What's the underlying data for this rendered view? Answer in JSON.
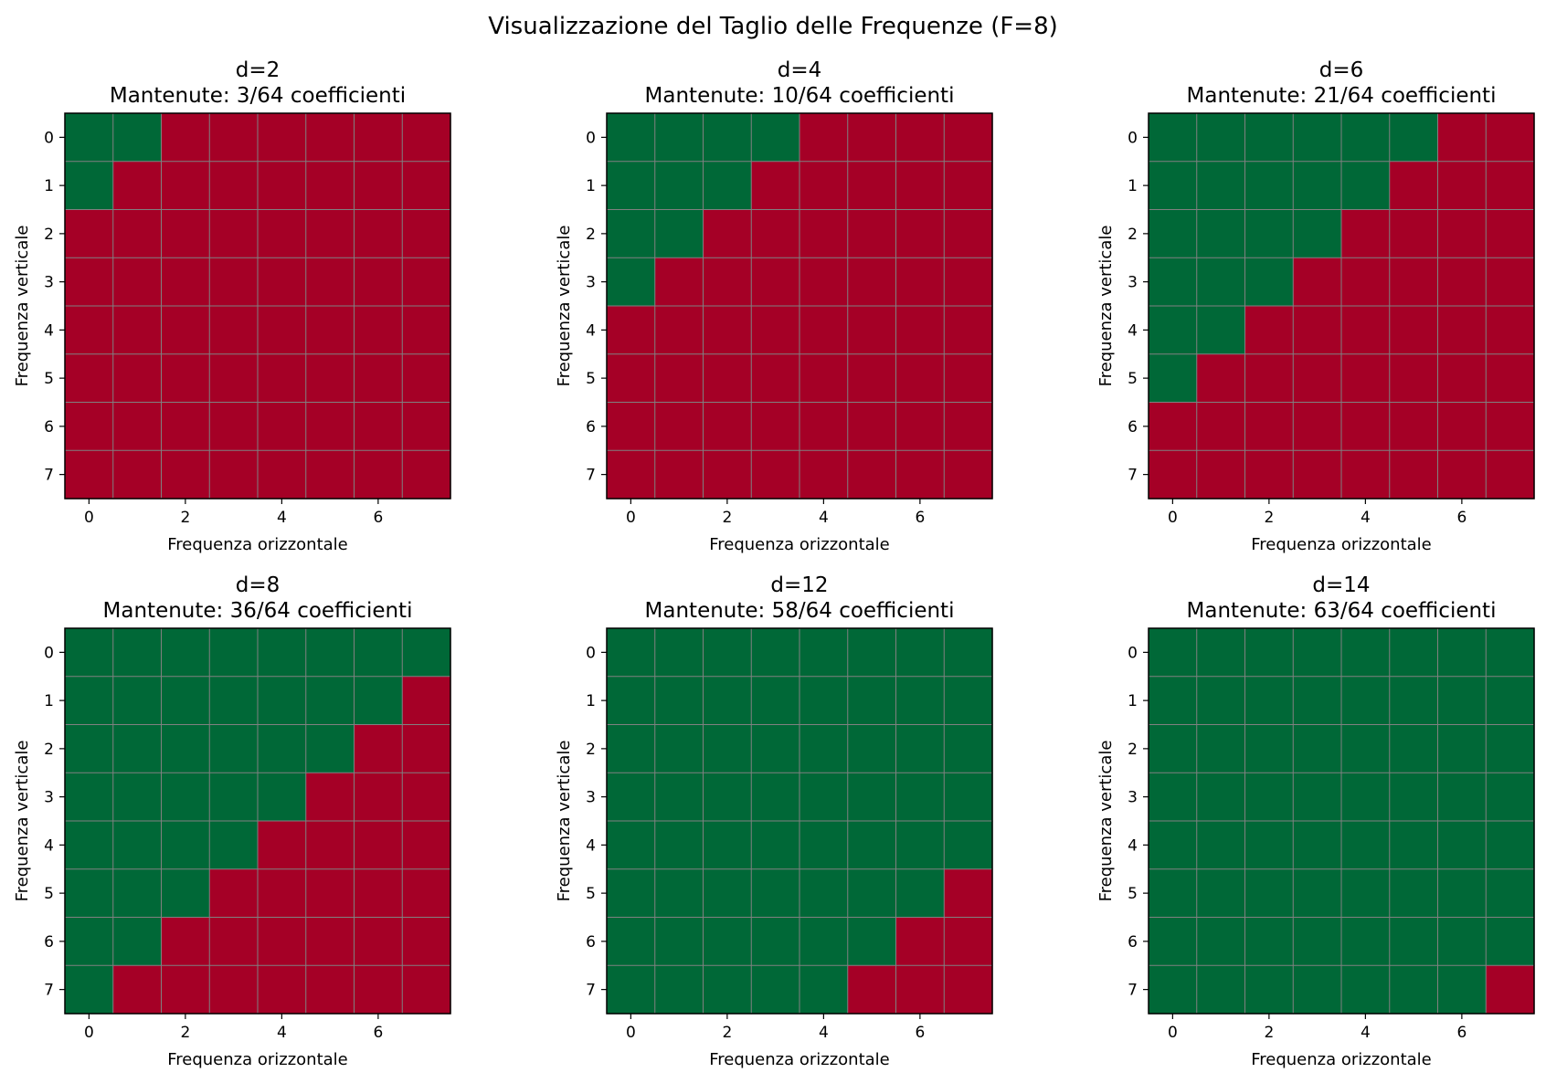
{
  "figure": {
    "suptitle": "Visualizzazione del Taglio delle Frequenze (F=8)"
  },
  "colors": {
    "kept": "#006837",
    "cut": "#a50026",
    "grid": "#808080",
    "frame": "#000000"
  },
  "chart_data": [
    {
      "type": "heatmap",
      "title": "d=2",
      "subtitle": "Mantenute: 3/64 coefficienti",
      "xlabel": "Frequenza orizzontale",
      "ylabel": "Frequenza verticale",
      "xticks": [
        "0",
        "2",
        "4",
        "6"
      ],
      "yticks": [
        "0",
        "1",
        "2",
        "3",
        "4",
        "5",
        "6",
        "7"
      ],
      "grid": true,
      "matrix": [
        [
          1,
          1,
          0,
          0,
          0,
          0,
          0,
          0
        ],
        [
          1,
          0,
          0,
          0,
          0,
          0,
          0,
          0
        ],
        [
          0,
          0,
          0,
          0,
          0,
          0,
          0,
          0
        ],
        [
          0,
          0,
          0,
          0,
          0,
          0,
          0,
          0
        ],
        [
          0,
          0,
          0,
          0,
          0,
          0,
          0,
          0
        ],
        [
          0,
          0,
          0,
          0,
          0,
          0,
          0,
          0
        ],
        [
          0,
          0,
          0,
          0,
          0,
          0,
          0,
          0
        ],
        [
          0,
          0,
          0,
          0,
          0,
          0,
          0,
          0
        ]
      ]
    },
    {
      "type": "heatmap",
      "title": "d=4",
      "subtitle": "Mantenute: 10/64 coefficienti",
      "xlabel": "Frequenza orizzontale",
      "ylabel": "Frequenza verticale",
      "xticks": [
        "0",
        "2",
        "4",
        "6"
      ],
      "yticks": [
        "0",
        "1",
        "2",
        "3",
        "4",
        "5",
        "6",
        "7"
      ],
      "grid": true,
      "matrix": [
        [
          1,
          1,
          1,
          1,
          0,
          0,
          0,
          0
        ],
        [
          1,
          1,
          1,
          0,
          0,
          0,
          0,
          0
        ],
        [
          1,
          1,
          0,
          0,
          0,
          0,
          0,
          0
        ],
        [
          1,
          0,
          0,
          0,
          0,
          0,
          0,
          0
        ],
        [
          0,
          0,
          0,
          0,
          0,
          0,
          0,
          0
        ],
        [
          0,
          0,
          0,
          0,
          0,
          0,
          0,
          0
        ],
        [
          0,
          0,
          0,
          0,
          0,
          0,
          0,
          0
        ],
        [
          0,
          0,
          0,
          0,
          0,
          0,
          0,
          0
        ]
      ]
    },
    {
      "type": "heatmap",
      "title": "d=6",
      "subtitle": "Mantenute: 21/64 coefficienti",
      "xlabel": "Frequenza orizzontale",
      "ylabel": "Frequenza verticale",
      "xticks": [
        "0",
        "2",
        "4",
        "6"
      ],
      "yticks": [
        "0",
        "1",
        "2",
        "3",
        "4",
        "5",
        "6",
        "7"
      ],
      "grid": true,
      "matrix": [
        [
          1,
          1,
          1,
          1,
          1,
          1,
          0,
          0
        ],
        [
          1,
          1,
          1,
          1,
          1,
          0,
          0,
          0
        ],
        [
          1,
          1,
          1,
          1,
          0,
          0,
          0,
          0
        ],
        [
          1,
          1,
          1,
          0,
          0,
          0,
          0,
          0
        ],
        [
          1,
          1,
          0,
          0,
          0,
          0,
          0,
          0
        ],
        [
          1,
          0,
          0,
          0,
          0,
          0,
          0,
          0
        ],
        [
          0,
          0,
          0,
          0,
          0,
          0,
          0,
          0
        ],
        [
          0,
          0,
          0,
          0,
          0,
          0,
          0,
          0
        ]
      ]
    },
    {
      "type": "heatmap",
      "title": "d=8",
      "subtitle": "Mantenute: 36/64 coefficienti",
      "xlabel": "Frequenza orizzontale",
      "ylabel": "Frequenza verticale",
      "xticks": [
        "0",
        "2",
        "4",
        "6"
      ],
      "yticks": [
        "0",
        "1",
        "2",
        "3",
        "4",
        "5",
        "6",
        "7"
      ],
      "grid": true,
      "matrix": [
        [
          1,
          1,
          1,
          1,
          1,
          1,
          1,
          1
        ],
        [
          1,
          1,
          1,
          1,
          1,
          1,
          1,
          0
        ],
        [
          1,
          1,
          1,
          1,
          1,
          1,
          0,
          0
        ],
        [
          1,
          1,
          1,
          1,
          1,
          0,
          0,
          0
        ],
        [
          1,
          1,
          1,
          1,
          0,
          0,
          0,
          0
        ],
        [
          1,
          1,
          1,
          0,
          0,
          0,
          0,
          0
        ],
        [
          1,
          1,
          0,
          0,
          0,
          0,
          0,
          0
        ],
        [
          1,
          0,
          0,
          0,
          0,
          0,
          0,
          0
        ]
      ]
    },
    {
      "type": "heatmap",
      "title": "d=12",
      "subtitle": "Mantenute: 58/64 coefficienti",
      "xlabel": "Frequenza orizzontale",
      "ylabel": "Frequenza verticale",
      "xticks": [
        "0",
        "2",
        "4",
        "6"
      ],
      "yticks": [
        "0",
        "1",
        "2",
        "3",
        "4",
        "5",
        "6",
        "7"
      ],
      "grid": true,
      "matrix": [
        [
          1,
          1,
          1,
          1,
          1,
          1,
          1,
          1
        ],
        [
          1,
          1,
          1,
          1,
          1,
          1,
          1,
          1
        ],
        [
          1,
          1,
          1,
          1,
          1,
          1,
          1,
          1
        ],
        [
          1,
          1,
          1,
          1,
          1,
          1,
          1,
          1
        ],
        [
          1,
          1,
          1,
          1,
          1,
          1,
          1,
          1
        ],
        [
          1,
          1,
          1,
          1,
          1,
          1,
          1,
          0
        ],
        [
          1,
          1,
          1,
          1,
          1,
          1,
          0,
          0
        ],
        [
          1,
          1,
          1,
          1,
          1,
          0,
          0,
          0
        ]
      ]
    },
    {
      "type": "heatmap",
      "title": "d=14",
      "subtitle": "Mantenute: 63/64 coefficienti",
      "xlabel": "Frequenza orizzontale",
      "ylabel": "Frequenza verticale",
      "xticks": [
        "0",
        "2",
        "4",
        "6"
      ],
      "yticks": [
        "0",
        "1",
        "2",
        "3",
        "4",
        "5",
        "6",
        "7"
      ],
      "grid": true,
      "matrix": [
        [
          1,
          1,
          1,
          1,
          1,
          1,
          1,
          1
        ],
        [
          1,
          1,
          1,
          1,
          1,
          1,
          1,
          1
        ],
        [
          1,
          1,
          1,
          1,
          1,
          1,
          1,
          1
        ],
        [
          1,
          1,
          1,
          1,
          1,
          1,
          1,
          1
        ],
        [
          1,
          1,
          1,
          1,
          1,
          1,
          1,
          1
        ],
        [
          1,
          1,
          1,
          1,
          1,
          1,
          1,
          1
        ],
        [
          1,
          1,
          1,
          1,
          1,
          1,
          1,
          1
        ],
        [
          1,
          1,
          1,
          1,
          1,
          1,
          1,
          0
        ]
      ]
    }
  ]
}
